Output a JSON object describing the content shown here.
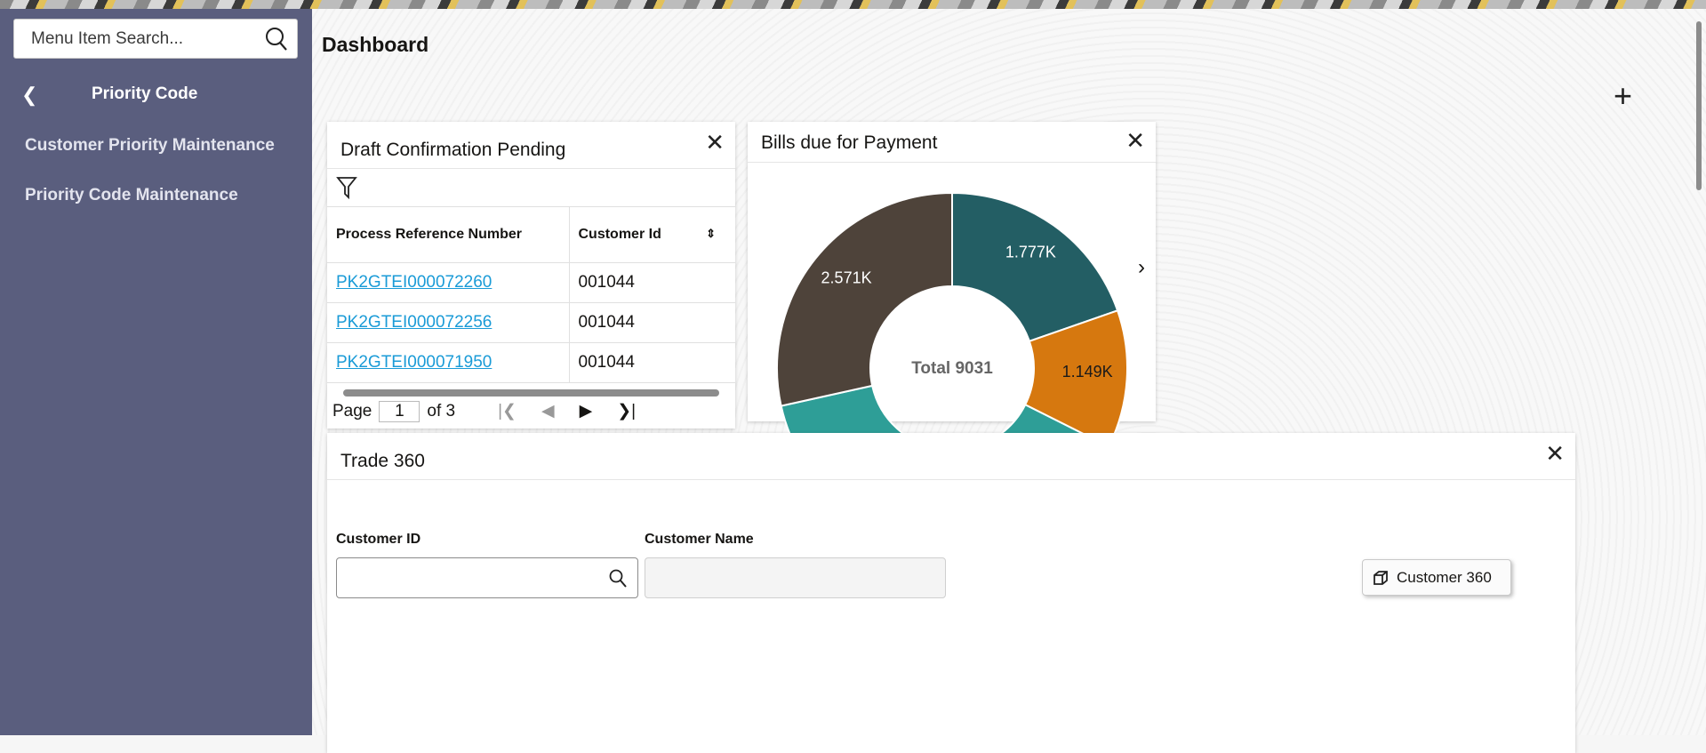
{
  "sidebar": {
    "search_placeholder": "Menu Item Search...",
    "title": "Priority Code",
    "items": [
      {
        "label": "Customer Priority Maintenance"
      },
      {
        "label": "Priority Code Maintenance"
      }
    ]
  },
  "header": {
    "title": "Dashboard"
  },
  "draft": {
    "title": "Draft Confirmation Pending",
    "columns": [
      "Process Reference Number",
      "Customer Id"
    ],
    "rows": [
      {
        "ref": "PK2GTEI000072260",
        "cust": "001044"
      },
      {
        "ref": "PK2GTEI000072256",
        "cust": "001044"
      },
      {
        "ref": "PK2GTEI000071950",
        "cust": "001044"
      }
    ],
    "pager": {
      "label": "Page",
      "page": "1",
      "of": "of 3"
    }
  },
  "bills": {
    "title": "Bills due for Payment"
  },
  "chart_data": {
    "type": "pie",
    "donut": true,
    "center_label": "Total 9031",
    "total": 9031,
    "slices": [
      {
        "label": "1.777K",
        "value": 1777,
        "color": "#235e64"
      },
      {
        "label": "1.149K",
        "value": 1149,
        "color": "#d6780f"
      },
      {
        "label": "",
        "value": null,
        "color": "#2e9e97"
      },
      {
        "label": "2.571K",
        "value": 2571,
        "color": "#4e433a"
      }
    ]
  },
  "trade": {
    "title": "Trade 360",
    "customer_id_label": "Customer ID",
    "customer_name_label": "Customer Name",
    "button": "Customer 360"
  }
}
